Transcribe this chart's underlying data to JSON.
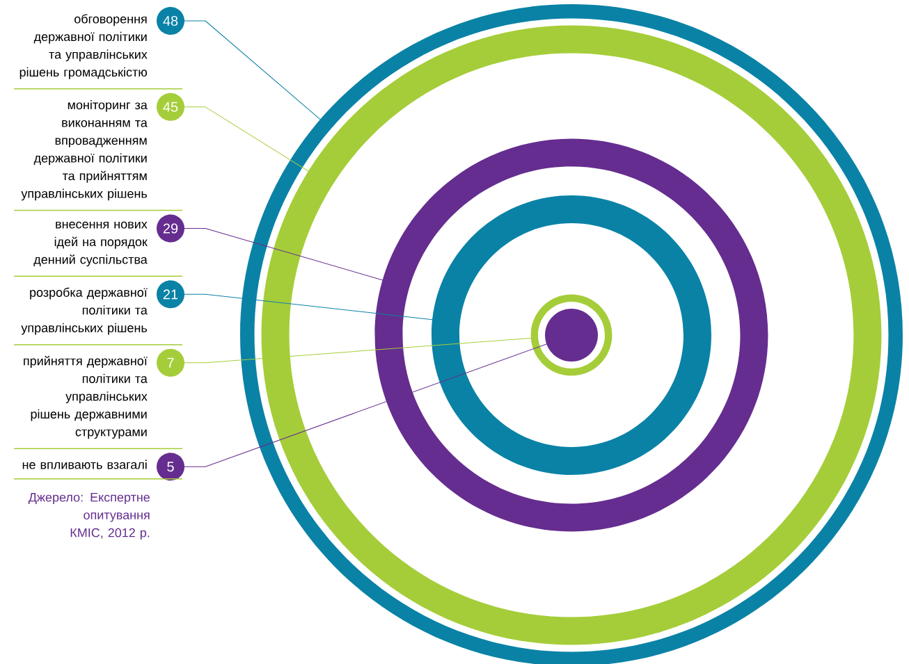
{
  "chart_data": {
    "type": "other",
    "categories": [
      "обговорення державної політики та управлінських рішень громадськістю",
      "моніторинг за виконанням та впровадженням державної політики та прийняттям управлінських рішень",
      "внесення нових ідей на порядок денний суспільства",
      "розробка державної політики та управлінських рішень",
      "прийняття державної політики та управлінських рішень державними структурами",
      "не впливають взагалі"
    ],
    "values": [
      48,
      45,
      29,
      21,
      7,
      5
    ],
    "colors": [
      "#0a82a6",
      "#a5cd39",
      "#652d8f",
      "#0a82a6",
      "#a5cd39",
      "#652d8f"
    ],
    "data_labels": true,
    "annotations": [
      "Джерело: Експертне опитування КМІС, 2012 р."
    ]
  }
}
